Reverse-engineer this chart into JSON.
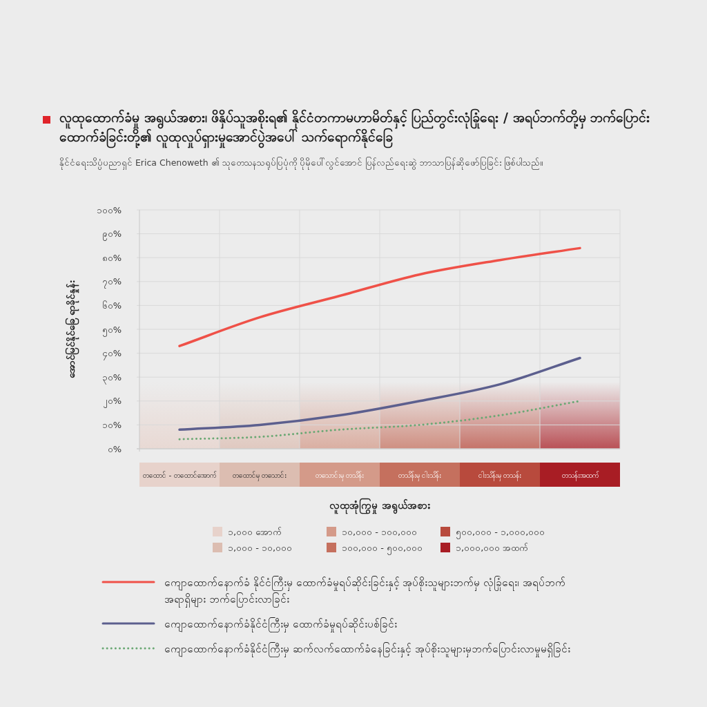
{
  "chart_data": {
    "type": "line",
    "title": "လူထုထောက်ခံမှု အရွယ်အစား၊ ဖိနှိပ်သူအစိုးရ၏ နိုင်ငံတကာမဟာမိတ်နှင့် ပြည်တွင်းလုံခြုံရေး / အရပ်ဘက်တို့မှ ဘက်ပြောင်းထောက်ခံခြင်းတို့၏ လူထုလှုပ်ရှားမှုအောင်ပွဲအပေါ် သက်ရောက်နိုင်ခြေ",
    "subtitle": "နိုင်ငံရေးသိပ္ပံပညာရှင် Erica Chenoweth ၏ သုတေသနသရုပ်ပြပုံကို ပိုမိုပေါ်လွင်အောင် ပြန်လည်ရေးဆွဲ ဘာသာပြန်ဆိုဖော်ပြခြင်း ဖြစ်ပါသည်။",
    "xlabel": "လူထုအုံကြွမှု အရွယ်အစား",
    "ylabel": "အောင်မြင်နိုင်ခြေ ရာခိုင်နှုန်း",
    "categories": [
      "တထောင် - တထောင်အောက်",
      "တထောင်မှ တသောင်း",
      "တသောင်းမှ တသိန်း",
      "တသိန်းမှ ငါးသိန်း",
      "ငါးသိန်းမှ တသန်း",
      "တသန်းအထက်"
    ],
    "ylim": [
      0,
      100
    ],
    "yticks": [
      {
        "value": 0,
        "label": "၀%"
      },
      {
        "value": 10,
        "label": "၁၀%"
      },
      {
        "value": 20,
        "label": "၂၀%"
      },
      {
        "value": 30,
        "label": "၃၀%"
      },
      {
        "value": 40,
        "label": "၄၀%"
      },
      {
        "value": 50,
        "label": "၅၀%"
      },
      {
        "value": 60,
        "label": "၆၀%"
      },
      {
        "value": 70,
        "label": "၇၀%"
      },
      {
        "value": 80,
        "label": "၈၀%"
      },
      {
        "value": 90,
        "label": "၉၀%"
      },
      {
        "value": 100,
        "label": "၁၀၀%"
      }
    ],
    "grid": true,
    "legend": "bottom",
    "series": [
      {
        "name": "ကျောထောက်နောက်ခံ နိုင်ငံကြီးမှ ထောက်ခံမှုရပ်ဆိုင်းခြင်းနှင့် အုပ်စိုးသူများဘက်မှ လုံခြုံရေး၊ အရပ်ဘက်အရာရှိများ ဘက်ပြောင်းလာခြင်း",
        "color": "#ef5148",
        "line_style": "solid",
        "values": [
          43,
          55,
          64,
          73,
          79,
          84
        ]
      },
      {
        "name": "ကျောထောက်နောက်ခံနိုင်ငံကြီးမှ ထောက်ခံမှုရပ်ဆိုင်းပစ်ခြင်း",
        "color": "#5c5f8e",
        "line_style": "solid",
        "values": [
          8,
          10,
          14,
          20,
          27,
          38
        ]
      },
      {
        "name": "ကျောထောက်နောက်ခံနိုင်ငံကြီးမှ ဆက်လက်ထောက်ခံနေခြင်းနှင့် အုပ်စိုးသူများမှဘက်ပြောင်းလာမှုမရှိခြင်း",
        "color": "#6aa874",
        "line_style": "dotted",
        "values": [
          4,
          5,
          8,
          10,
          14,
          20
        ]
      }
    ],
    "bands": [
      {
        "axis": "x",
        "from": "တထောင် - တထောင်အောက်",
        "to": "တထောင် - တထောင်အောက်",
        "label": "၁,၀၀၀ အောက်",
        "color": "#e7d2cb"
      },
      {
        "axis": "x",
        "from": "တထောင်မှ တသောင်း",
        "to": "တထောင်မှ တသောင်း",
        "label": "၁,၀၀၀ - ၁၀,၀၀၀",
        "color": "#dcbdb1"
      },
      {
        "axis": "x",
        "from": "တသောင်းမှ တသိန်း",
        "to": "တသောင်းမှ တသိန်း",
        "label": "၁၀,၀၀၀ - ၁၀၀,၀၀၀",
        "color": "#d49a89"
      },
      {
        "axis": "x",
        "from": "တသိန်းမှ ငါးသိန်း",
        "to": "တသိန်းမှ ငါးသိန်း",
        "label": "၁၀၀,၀၀၀ - ၅၀၀,၀၀၀",
        "color": "#c5705e"
      },
      {
        "axis": "x",
        "from": "ငါးသိန်းမှ တသန်း",
        "to": "ငါးသိန်းမှ တသန်း",
        "label": "၅၀၀,၀၀၀ - ၁,၀၀၀,၀၀၀",
        "color": "#b84a3d"
      },
      {
        "axis": "x",
        "from": "တသန်းအထက်",
        "to": "တသန်းအထက်",
        "label": "၁,၀၀၀,၀၀၀ အထက်",
        "color": "#a81d24"
      }
    ]
  }
}
